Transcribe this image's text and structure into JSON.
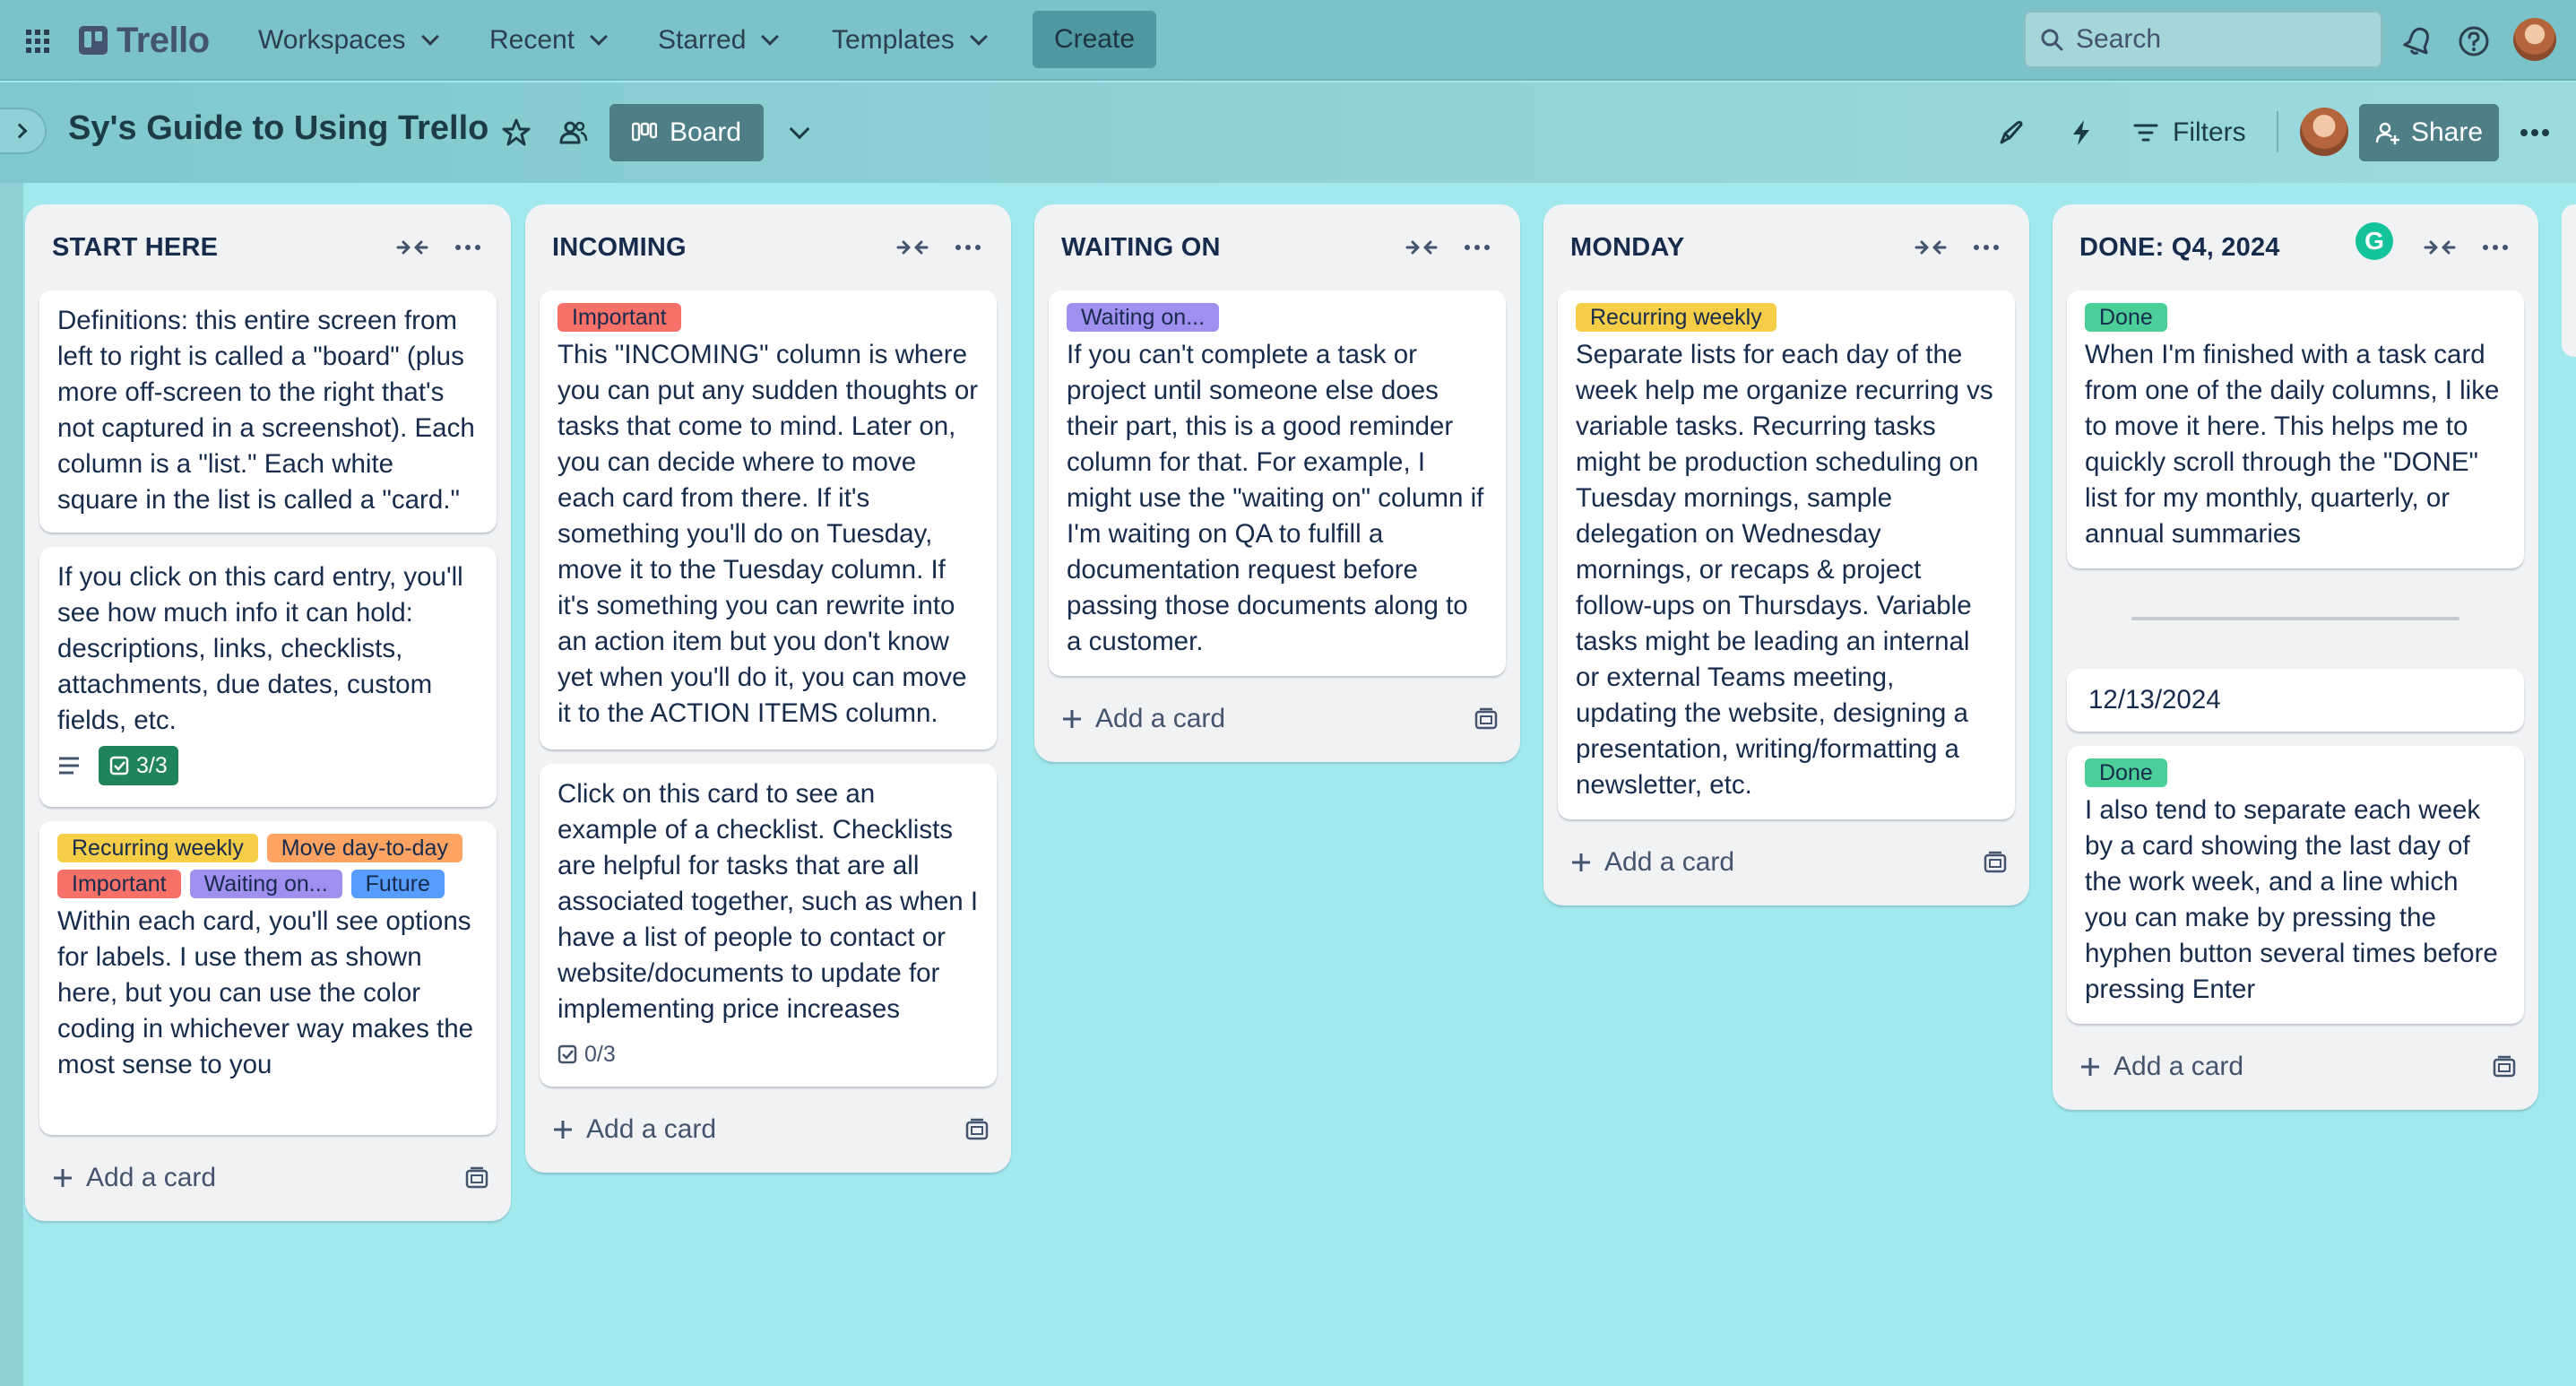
{
  "nav": {
    "logo_text": "Trello",
    "menus": [
      {
        "label": "Workspaces"
      },
      {
        "label": "Recent"
      },
      {
        "label": "Starred"
      },
      {
        "label": "Templates"
      }
    ],
    "create_label": "Create",
    "search_placeholder": "Search",
    "icons": [
      "apps-grid-icon",
      "notifications-icon",
      "help-icon",
      "avatar"
    ]
  },
  "board": {
    "title": "Sy's Guide to Using Trello",
    "view_label": "Board",
    "filters_label": "Filters",
    "share_label": "Share",
    "background_color": "#a2e9ee"
  },
  "colors": {
    "label_yellow": "#f5cd47",
    "label_orange": "#fea362",
    "label_red": "#f87168",
    "label_purple": "#9f8fef",
    "label_blue": "#579dff",
    "label_green": "#4bce97",
    "checklist_complete": "#1f845a"
  },
  "lists": [
    {
      "title": "START HERE",
      "add_card_label": "Add a card",
      "cards": [
        {
          "text": "Definitions: this entire screen from left to right is called a \"board\" (plus more off-screen to the right that's not captured in a screenshot). Each column is a \"list.\" Each white square in the list is called a \"card.\""
        },
        {
          "text": "If you click on this card entry, you'll see how much info it can hold: descriptions, links, checklists, attachments, due dates, custom fields, etc.",
          "checklist": "3/3"
        },
        {
          "labels": [
            "Recurring weekly",
            "Move day-to-day",
            "Important",
            "Waiting on...",
            "Future"
          ],
          "text": "Within each card, you'll see options for labels. I use them as shown here, but you can use the color coding in whichever way makes the most sense to you"
        }
      ]
    },
    {
      "title": "INCOMING",
      "add_card_label": "Add a card",
      "cards": [
        {
          "labels": [
            "Important"
          ],
          "text": "This \"INCOMING\" column is where you can put any sudden thoughts or tasks that come to mind. Later on, you can decide where to move each card from there. If it's something you'll do on Tuesday, move it to the Tuesday column. If it's something you can rewrite into an action item but you don't know yet when you'll do it, you can move it to the ACTION ITEMS column."
        },
        {
          "text": "Click on this card to see an example of a checklist. Checklists are helpful for tasks that are all associated together, such as when I have a list of people to contact or website/documents to update for implementing price increases",
          "checklist": "0/3"
        }
      ]
    },
    {
      "title": "WAITING ON",
      "add_card_label": "Add a card",
      "cards": [
        {
          "labels": [
            "Waiting on..."
          ],
          "text": "If you can't complete a task or project until someone else does their part, this is a good reminder column for that. For example, I might use the \"waiting on\" column if I'm waiting on QA to fulfill a documentation request before passing those documents along to a customer."
        }
      ]
    },
    {
      "title": "MONDAY",
      "add_card_label": "Add a card",
      "cards": [
        {
          "labels": [
            "Recurring weekly"
          ],
          "text": "Separate lists for each day of the week help me organize recurring vs variable tasks. Recurring tasks might be production scheduling on Tuesday mornings, sample delegation on Wednesday mornings, or recaps & project follow-ups on Thursdays. Variable tasks might be leading an internal or external Teams meeting, updating the website, designing a presentation, writing/formatting a newsletter, etc."
        }
      ]
    },
    {
      "title": "DONE: Q4, 2024",
      "add_card_label": "Add a card",
      "cards": [
        {
          "labels": [
            "Done"
          ],
          "text": "When I'm finished with a task card from one of the daily columns, I like to move it here. This helps me to quickly scroll through the \"DONE\" list for my monthly, quarterly, or annual summaries"
        },
        {
          "separator_date": "12/13/2024"
        },
        {
          "labels": [
            "Done"
          ],
          "text": "I also tend to separate each week by a card showing the last day of the work week, and a line which you can make by pressing the hyphen button several times before pressing Enter"
        }
      ]
    }
  ]
}
